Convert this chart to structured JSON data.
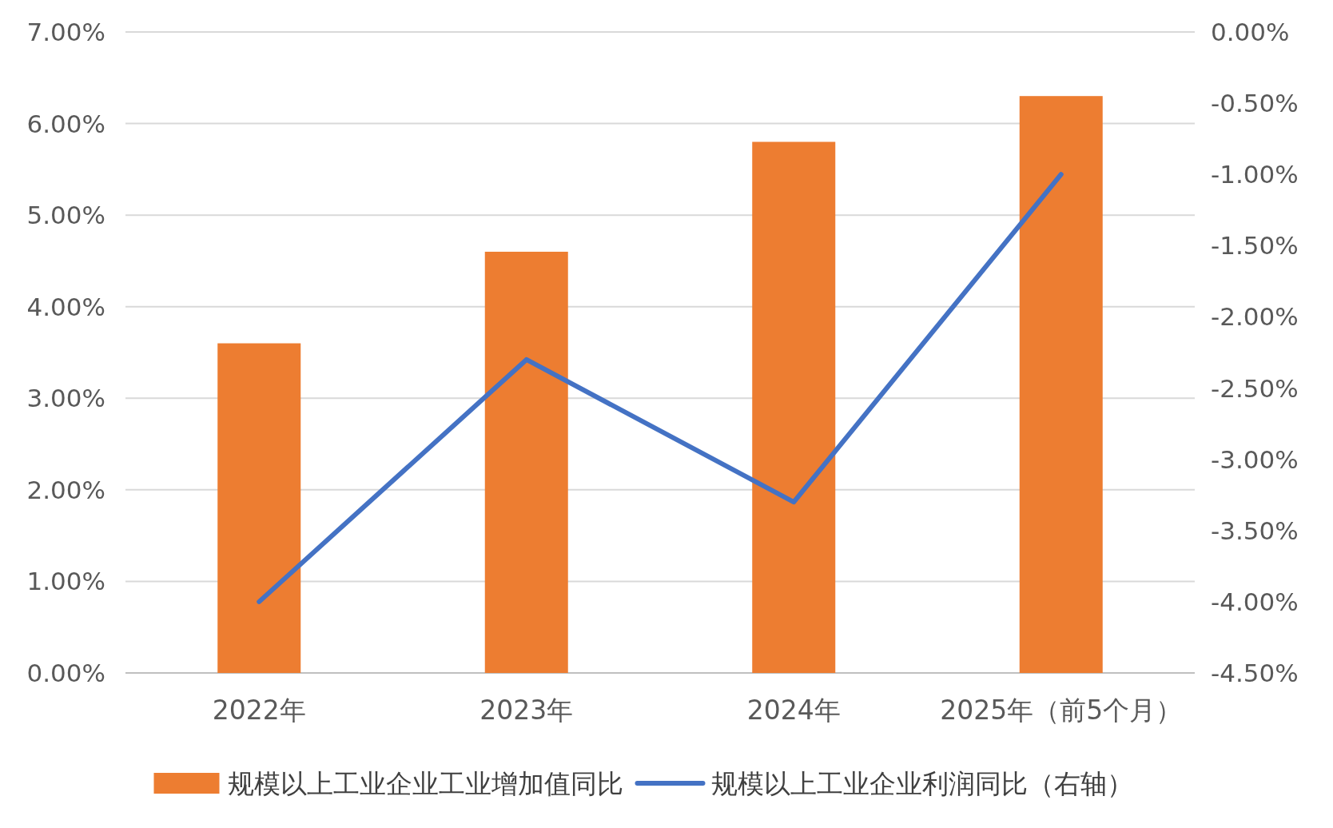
{
  "chart_data": {
    "type": "bar",
    "categories": [
      "2022年",
      "2023年",
      "2024年",
      "2025年（前5个月）"
    ],
    "series": [
      {
        "name": "规模以上工业企业工业增加值同比",
        "color": "#ed7d31",
        "values": [
          3.6,
          4.6,
          5.8,
          6.3
        ]
      },
      {
        "name": "规模以上工业企业利润同比（右轴）",
        "type": "line",
        "axis": "y2",
        "color": "#4472c4",
        "values": [
          -4.0,
          -2.3,
          -3.3,
          -1.0
        ]
      }
    ],
    "ylim": [
      0,
      7
    ],
    "yticks": [
      {
        "value": 0,
        "label": "0.00%"
      },
      {
        "value": 1,
        "label": "1.00%"
      },
      {
        "value": 2,
        "label": "2.00%"
      },
      {
        "value": 3,
        "label": "3.00%"
      },
      {
        "value": 4,
        "label": "4.00%"
      },
      {
        "value": 5,
        "label": "5.00%"
      },
      {
        "value": 6,
        "label": "6.00%"
      },
      {
        "value": 7,
        "label": "7.00%"
      }
    ],
    "y2lim": [
      -4.5,
      0
    ],
    "y2ticks": [
      {
        "value": -4.5,
        "label": "-4.50%"
      },
      {
        "value": -4,
        "label": "-4.00%"
      },
      {
        "value": -3.5,
        "label": "-3.50%"
      },
      {
        "value": -3,
        "label": "-3.00%"
      },
      {
        "value": -2.5,
        "label": "-2.50%"
      },
      {
        "value": -2,
        "label": "-2.00%"
      },
      {
        "value": -1.5,
        "label": "-1.50%"
      },
      {
        "value": -1,
        "label": "-1.00%"
      },
      {
        "value": -0.5,
        "label": "-0.50%"
      },
      {
        "value": 0,
        "label": "0.00%"
      }
    ],
    "grid": "y",
    "legend": "bottom"
  }
}
